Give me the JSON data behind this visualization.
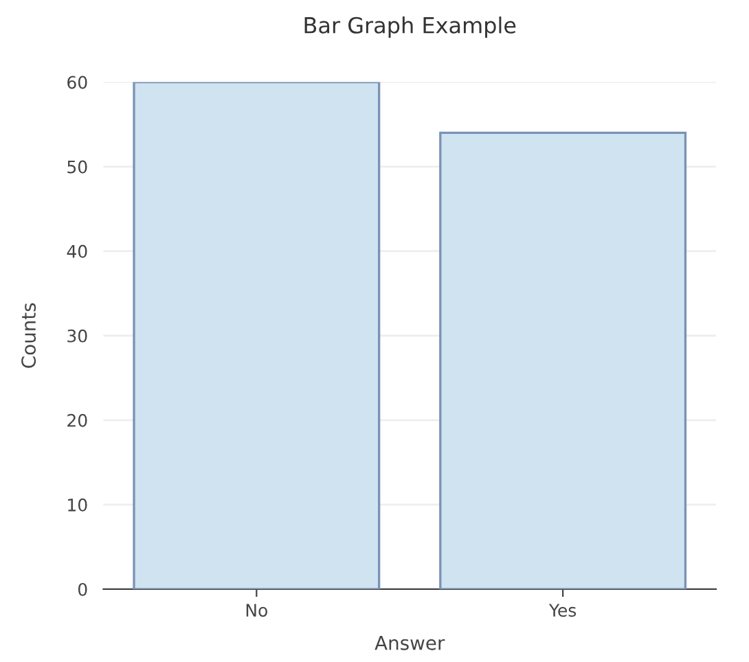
{
  "chart_data": {
    "type": "bar",
    "title": "Bar Graph Example",
    "xlabel": "Answer",
    "ylabel": "Counts",
    "categories": [
      "No",
      "Yes"
    ],
    "values": [
      60,
      54
    ],
    "color": "#cfe4f0",
    "ylim": [
      0,
      60
    ],
    "yticks": [
      0,
      10,
      20,
      30,
      40,
      50,
      60
    ],
    "grid": "y",
    "legend": false
  }
}
